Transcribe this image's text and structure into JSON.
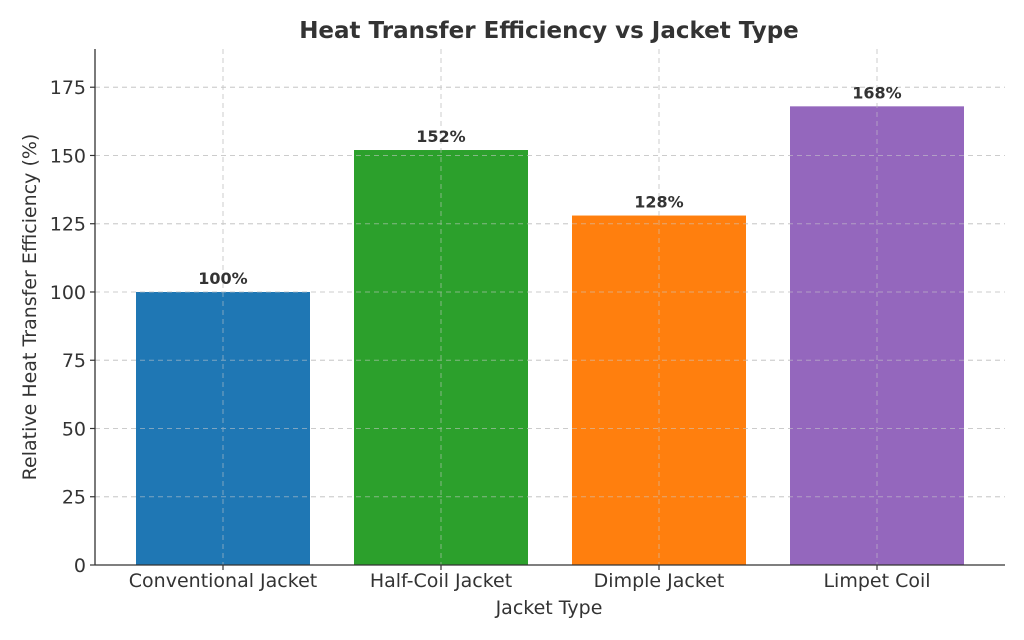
{
  "chart_data": {
    "type": "bar",
    "title": "Heat Transfer Efficiency vs Jacket Type",
    "xlabel": "Jacket Type",
    "ylabel": "Relative Heat Transfer Efficiency (%)",
    "categories": [
      "Conventional Jacket",
      "Half-Coil Jacket",
      "Dimple Jacket",
      "Limpet Coil"
    ],
    "values": [
      100,
      152,
      128,
      168
    ],
    "data_labels": [
      "100%",
      "152%",
      "128%",
      "168%"
    ],
    "colors": [
      "#1f77b4",
      "#2ca02c",
      "#ff7f0e",
      "#9467bd"
    ],
    "ylim": [
      0,
      189
    ],
    "yticks": [
      0,
      25,
      50,
      75,
      100,
      125,
      150,
      175
    ],
    "grid": true
  }
}
